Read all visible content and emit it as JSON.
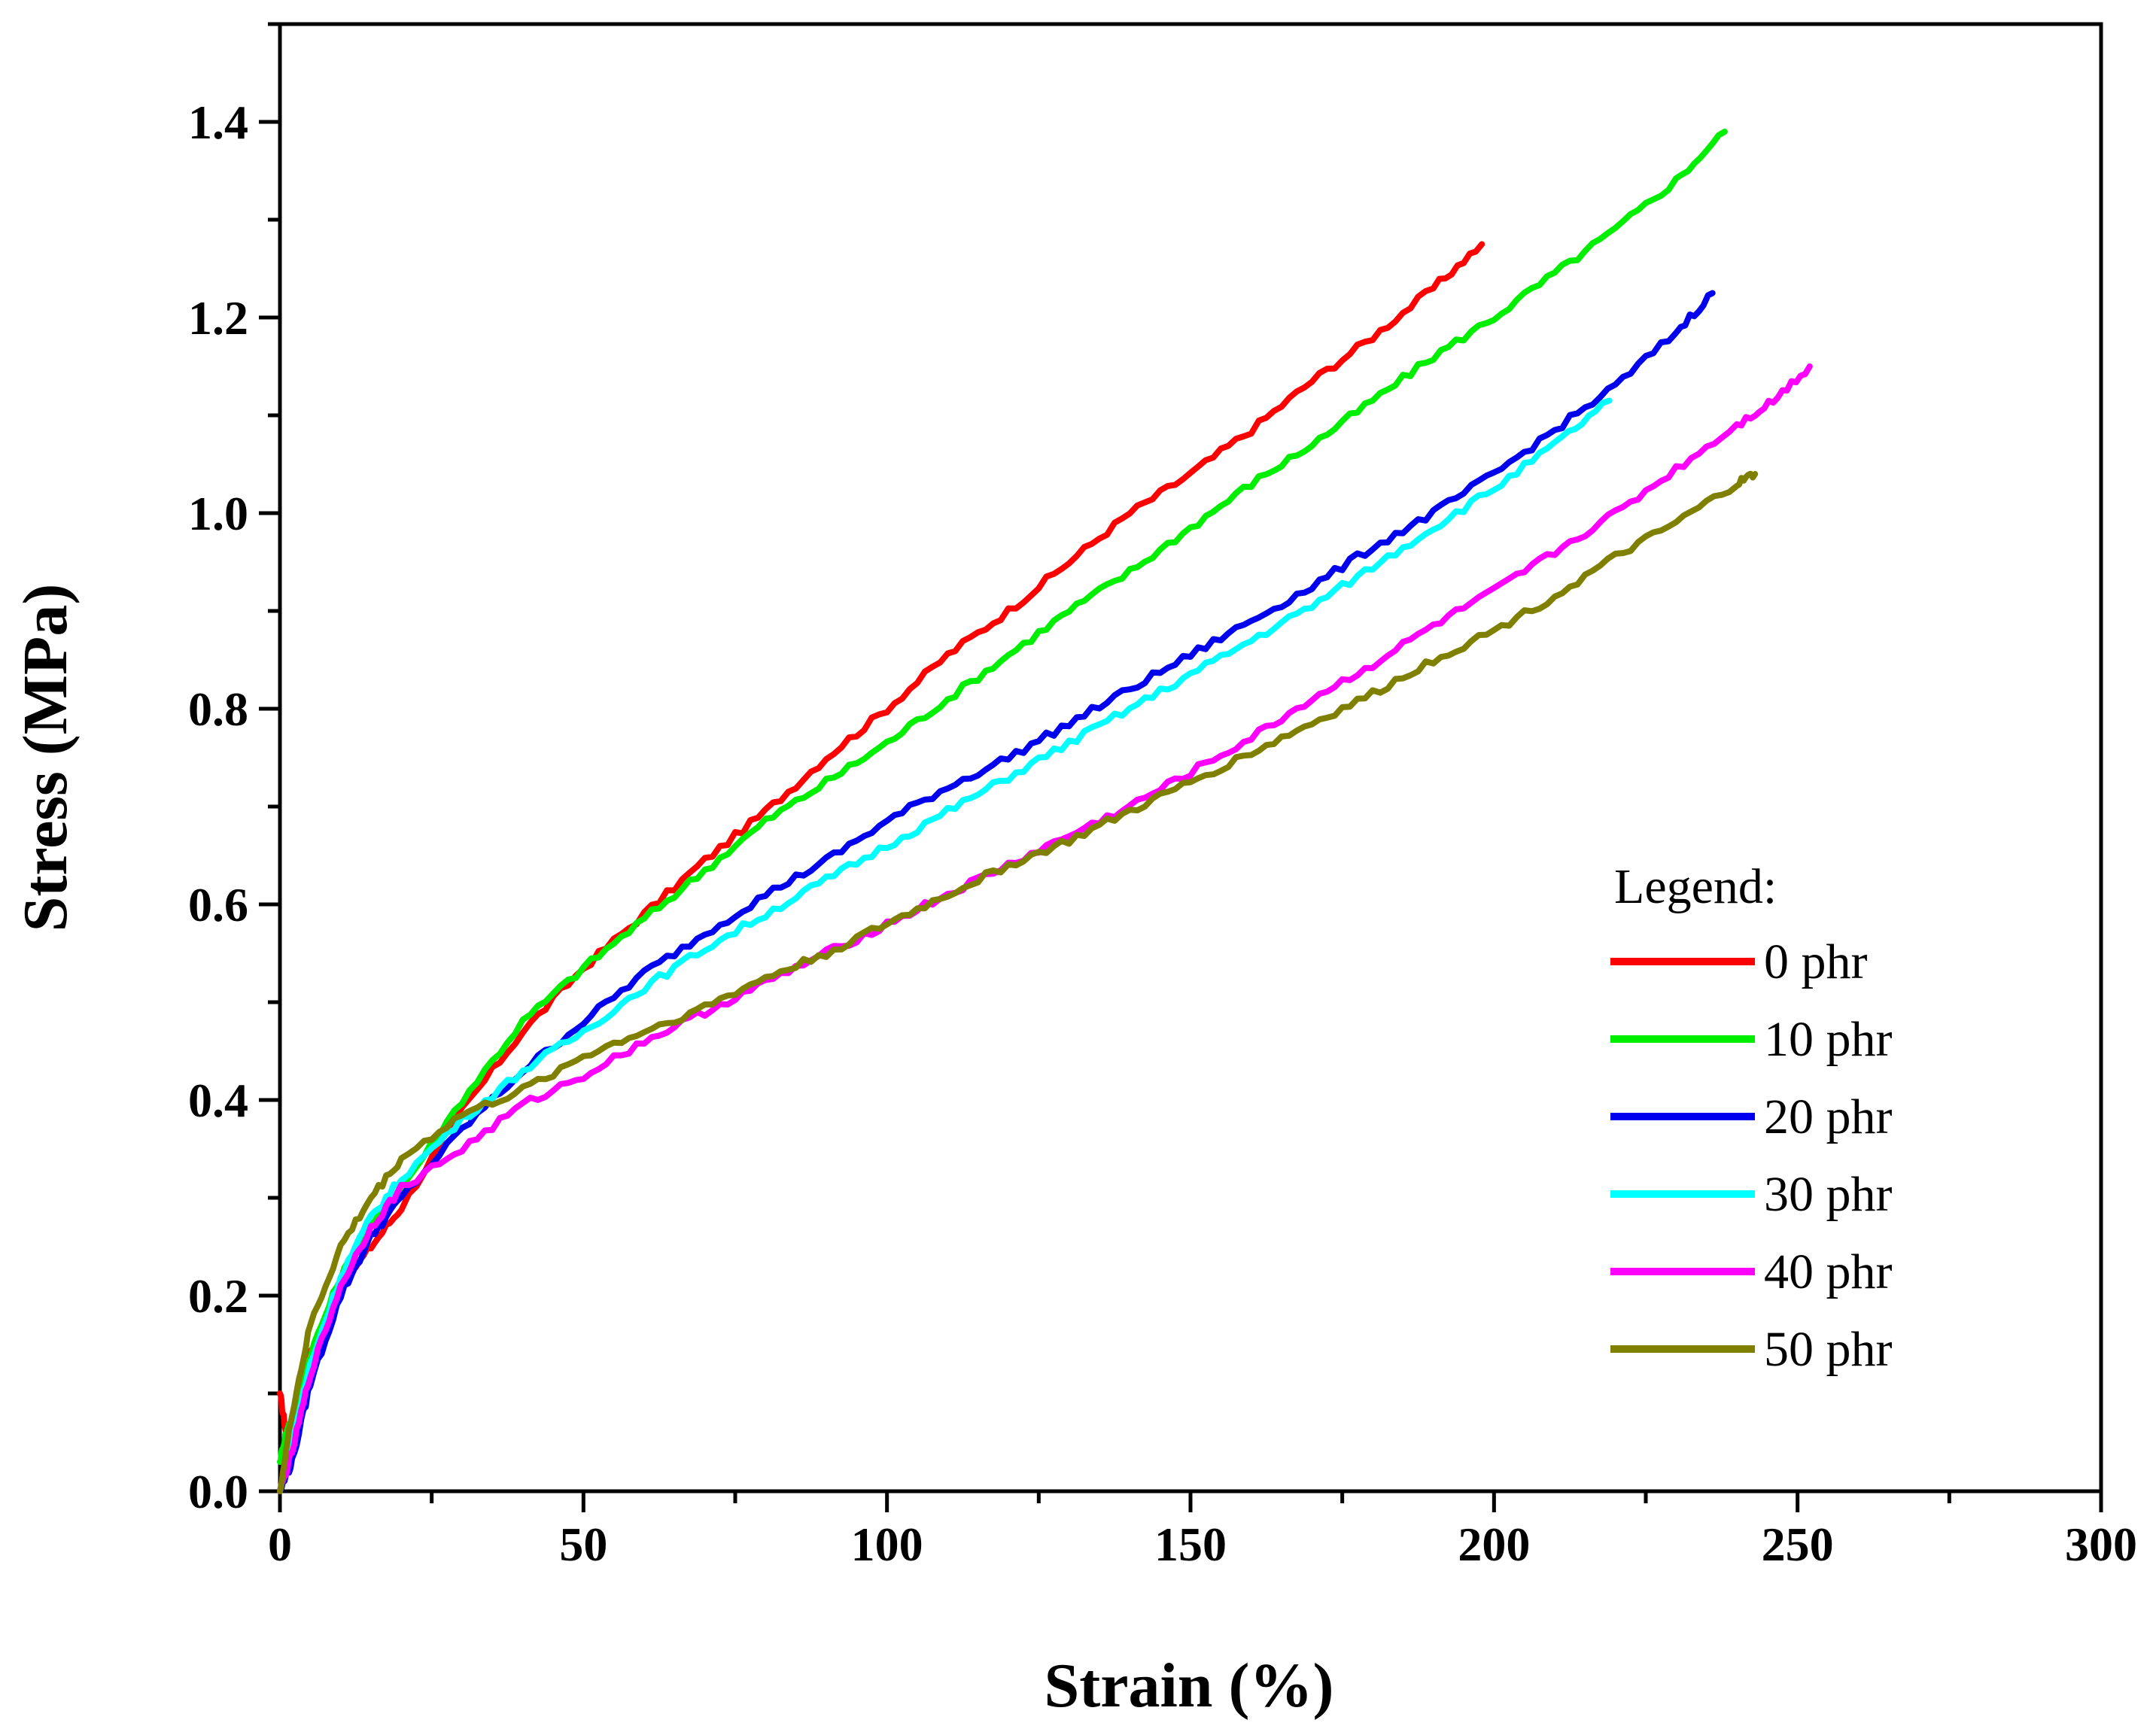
{
  "chart_data": {
    "type": "line",
    "title": "",
    "xlabel": "Strain (%)",
    "ylabel": "Stress (MPa)",
    "xlim": [
      0,
      300
    ],
    "ylim": [
      0,
      1.5
    ],
    "x_ticks": [
      0,
      50,
      100,
      150,
      200,
      250,
      300
    ],
    "x_tick_labels": [
      "0",
      "50",
      "100",
      "150",
      "200",
      "250",
      "300"
    ],
    "y_ticks": [
      0,
      0.2,
      0.4,
      0.6,
      0.8,
      1.0,
      1.2,
      1.4
    ],
    "y_tick_labels": [
      "0.0",
      "0.2",
      "0.4",
      "0.6",
      "0.8",
      "1.0",
      "1.2",
      "1.4"
    ],
    "grid": false,
    "legend": {
      "title": "Legend:",
      "position": "bottom-right"
    },
    "series": [
      {
        "name": "0 phr",
        "color": "#ff0000",
        "points": [
          [
            0,
            0.1
          ],
          [
            1,
            0.06
          ],
          [
            2,
            0.05
          ],
          [
            5,
            0.14
          ],
          [
            10,
            0.21
          ],
          [
            15,
            0.25
          ],
          [
            20,
            0.29
          ],
          [
            30,
            0.39
          ],
          [
            40,
            0.47
          ],
          [
            50,
            0.535
          ],
          [
            60,
            0.59
          ],
          [
            70,
            0.645
          ],
          [
            80,
            0.695
          ],
          [
            90,
            0.75
          ],
          [
            100,
            0.8
          ],
          [
            110,
            0.855
          ],
          [
            120,
            0.9
          ],
          [
            130,
            0.95
          ],
          [
            140,
            1.0
          ],
          [
            150,
            1.04
          ],
          [
            160,
            1.085
          ],
          [
            170,
            1.135
          ],
          [
            180,
            1.18
          ],
          [
            190,
            1.23
          ],
          [
            198,
            1.275
          ]
        ]
      },
      {
        "name": "10 phr",
        "color": "#00ee00",
        "points": [
          [
            0,
            0.03
          ],
          [
            1,
            0.06
          ],
          [
            3,
            0.09
          ],
          [
            5,
            0.14
          ],
          [
            10,
            0.22
          ],
          [
            15,
            0.27
          ],
          [
            20,
            0.31
          ],
          [
            30,
            0.4
          ],
          [
            40,
            0.48
          ],
          [
            50,
            0.535
          ],
          [
            60,
            0.585
          ],
          [
            70,
            0.635
          ],
          [
            80,
            0.685
          ],
          [
            90,
            0.725
          ],
          [
            100,
            0.765
          ],
          [
            110,
            0.81
          ],
          [
            120,
            0.855
          ],
          [
            130,
            0.9
          ],
          [
            140,
            0.94
          ],
          [
            150,
            0.985
          ],
          [
            160,
            1.03
          ],
          [
            170,
            1.07
          ],
          [
            180,
            1.115
          ],
          [
            190,
            1.16
          ],
          [
            200,
            1.2
          ],
          [
            210,
            1.245
          ],
          [
            220,
            1.29
          ],
          [
            230,
            1.34
          ],
          [
            238,
            1.39
          ]
        ]
      },
      {
        "name": "20 phr",
        "color": "#0000ee",
        "points": [
          [
            0,
            0.0
          ],
          [
            2,
            0.03
          ],
          [
            5,
            0.11
          ],
          [
            10,
            0.2
          ],
          [
            15,
            0.26
          ],
          [
            20,
            0.3
          ],
          [
            30,
            0.37
          ],
          [
            40,
            0.43
          ],
          [
            50,
            0.48
          ],
          [
            60,
            0.53
          ],
          [
            70,
            0.57
          ],
          [
            80,
            0.61
          ],
          [
            90,
            0.645
          ],
          [
            100,
            0.685
          ],
          [
            110,
            0.72
          ],
          [
            120,
            0.75
          ],
          [
            130,
            0.785
          ],
          [
            140,
            0.82
          ],
          [
            150,
            0.855
          ],
          [
            160,
            0.89
          ],
          [
            170,
            0.925
          ],
          [
            180,
            0.965
          ],
          [
            190,
            1.0
          ],
          [
            200,
            1.04
          ],
          [
            210,
            1.085
          ],
          [
            220,
            1.13
          ],
          [
            230,
            1.185
          ],
          [
            236,
            1.225
          ]
        ]
      },
      {
        "name": "30 phr",
        "color": "#00ffff",
        "points": [
          [
            0,
            0.0
          ],
          [
            2,
            0.05
          ],
          [
            5,
            0.13
          ],
          [
            10,
            0.22
          ],
          [
            15,
            0.28
          ],
          [
            20,
            0.32
          ],
          [
            30,
            0.38
          ],
          [
            40,
            0.43
          ],
          [
            50,
            0.47
          ],
          [
            60,
            0.515
          ],
          [
            70,
            0.555
          ],
          [
            80,
            0.59
          ],
          [
            90,
            0.625
          ],
          [
            100,
            0.66
          ],
          [
            110,
            0.695
          ],
          [
            120,
            0.73
          ],
          [
            130,
            0.765
          ],
          [
            140,
            0.8
          ],
          [
            150,
            0.835
          ],
          [
            160,
            0.87
          ],
          [
            170,
            0.905
          ],
          [
            180,
            0.945
          ],
          [
            190,
            0.985
          ],
          [
            200,
            1.025
          ],
          [
            210,
            1.07
          ],
          [
            219,
            1.115
          ]
        ]
      },
      {
        "name": "40 phr",
        "color": "#ff00ff",
        "points": [
          [
            0,
            0.0
          ],
          [
            2,
            0.04
          ],
          [
            5,
            0.12
          ],
          [
            10,
            0.21
          ],
          [
            15,
            0.27
          ],
          [
            20,
            0.31
          ],
          [
            30,
            0.35
          ],
          [
            40,
            0.395
          ],
          [
            50,
            0.425
          ],
          [
            60,
            0.46
          ],
          [
            70,
            0.49
          ],
          [
            80,
            0.52
          ],
          [
            90,
            0.55
          ],
          [
            100,
            0.58
          ],
          [
            110,
            0.61
          ],
          [
            120,
            0.64
          ],
          [
            130,
            0.67
          ],
          [
            140,
            0.7
          ],
          [
            150,
            0.735
          ],
          [
            160,
            0.77
          ],
          [
            170,
            0.81
          ],
          [
            180,
            0.845
          ],
          [
            190,
            0.885
          ],
          [
            200,
            0.92
          ],
          [
            210,
            0.96
          ],
          [
            220,
            1.0
          ],
          [
            230,
            1.045
          ],
          [
            240,
            1.09
          ],
          [
            246,
            1.115
          ],
          [
            252,
            1.15
          ]
        ]
      },
      {
        "name": "50 phr",
        "color": "#808000",
        "points": [
          [
            0,
            0.0
          ],
          [
            2,
            0.08
          ],
          [
            5,
            0.17
          ],
          [
            10,
            0.25
          ],
          [
            15,
            0.3
          ],
          [
            20,
            0.34
          ],
          [
            30,
            0.385
          ],
          [
            40,
            0.41
          ],
          [
            50,
            0.445
          ],
          [
            60,
            0.47
          ],
          [
            70,
            0.495
          ],
          [
            80,
            0.525
          ],
          [
            90,
            0.55
          ],
          [
            100,
            0.58
          ],
          [
            110,
            0.61
          ],
          [
            120,
            0.64
          ],
          [
            130,
            0.665
          ],
          [
            140,
            0.695
          ],
          [
            150,
            0.725
          ],
          [
            160,
            0.755
          ],
          [
            170,
            0.785
          ],
          [
            180,
            0.815
          ],
          [
            190,
            0.85
          ],
          [
            200,
            0.88
          ],
          [
            210,
            0.915
          ],
          [
            220,
            0.955
          ],
          [
            230,
            0.99
          ],
          [
            240,
            1.03
          ],
          [
            243,
            1.04
          ]
        ]
      }
    ]
  }
}
